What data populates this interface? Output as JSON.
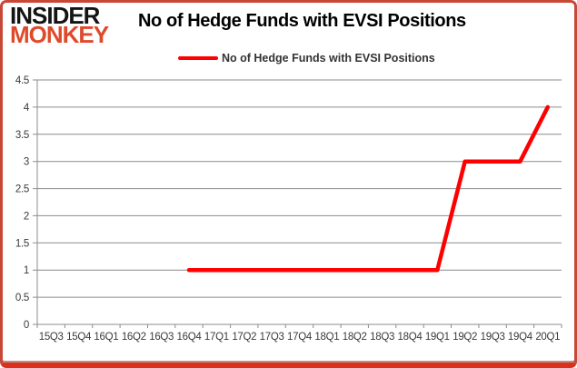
{
  "brand": {
    "line1": "INSIDER",
    "line2": "MONKEY",
    "monkey_color": "#df4a2b"
  },
  "header": {
    "title": "No of Hedge Funds with EVSI Positions"
  },
  "legend": {
    "label": "No of Hedge Funds with EVSI Positions",
    "swatch_color": "#fe0000"
  },
  "colors": {
    "series": "#fe0000",
    "grid": "#8c8c8c",
    "card_border": "#c74836",
    "card_border_bottom": "#dc2f1c",
    "axis_text": "#3a3a3a"
  },
  "chart_data": {
    "type": "line",
    "title": "No of Hedge Funds with EVSI Positions",
    "categories": [
      "15Q3",
      "15Q4",
      "16Q1",
      "16Q2",
      "16Q3",
      "16Q4",
      "17Q1",
      "17Q2",
      "17Q3",
      "17Q4",
      "18Q1",
      "18Q2",
      "18Q3",
      "18Q4",
      "19Q1",
      "19Q2",
      "19Q3",
      "19Q4",
      "20Q1"
    ],
    "series": [
      {
        "name": "No of Hedge Funds with EVSI Positions",
        "color": "#fe0000",
        "values": [
          null,
          null,
          null,
          null,
          null,
          1,
          1,
          1,
          1,
          1,
          1,
          1,
          1,
          1,
          1,
          3,
          3,
          3,
          4
        ]
      }
    ],
    "xlabel": "",
    "ylabel": "",
    "ylim": [
      0,
      4.5
    ],
    "yticks": [
      0,
      0.5,
      1,
      1.5,
      2,
      2.5,
      3,
      3.5,
      4,
      4.5
    ],
    "ytick_labels": [
      "0",
      "0.5",
      "1",
      "1.5",
      "2",
      "2.5",
      "3",
      "3.5",
      "4",
      "4.5"
    ],
    "grid": "horizontal",
    "legend_position": "top-center"
  }
}
